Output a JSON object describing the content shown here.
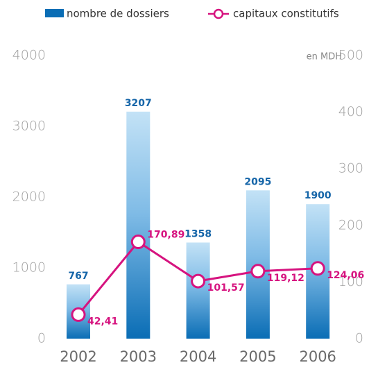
{
  "chart_data": {
    "type": "bar_line",
    "categories": [
      "2002",
      "2003",
      "2004",
      "2005",
      "2006"
    ],
    "series": [
      {
        "name": "nombre de dossiers",
        "type": "bar",
        "color": "#0a6db5",
        "values": [
          767,
          3207,
          1358,
          2095,
          1900
        ]
      },
      {
        "name": "capitaux constitutifs",
        "type": "line",
        "axis": "y2",
        "color": "#d6137f",
        "values": [
          42.41,
          170.89,
          101.57,
          119.12,
          124.06
        ],
        "value_labels": [
          "42,41",
          "170,89",
          "101,57",
          "119,12",
          "124,06"
        ]
      }
    ],
    "ylim": [
      0,
      4000
    ],
    "yticks": [
      0,
      1000,
      2000,
      3000,
      4000
    ],
    "y2lim": [
      0,
      500
    ],
    "y2ticks": [
      0,
      100,
      200,
      300,
      400,
      500
    ],
    "y2_label": "en MDH",
    "legend": "top"
  }
}
